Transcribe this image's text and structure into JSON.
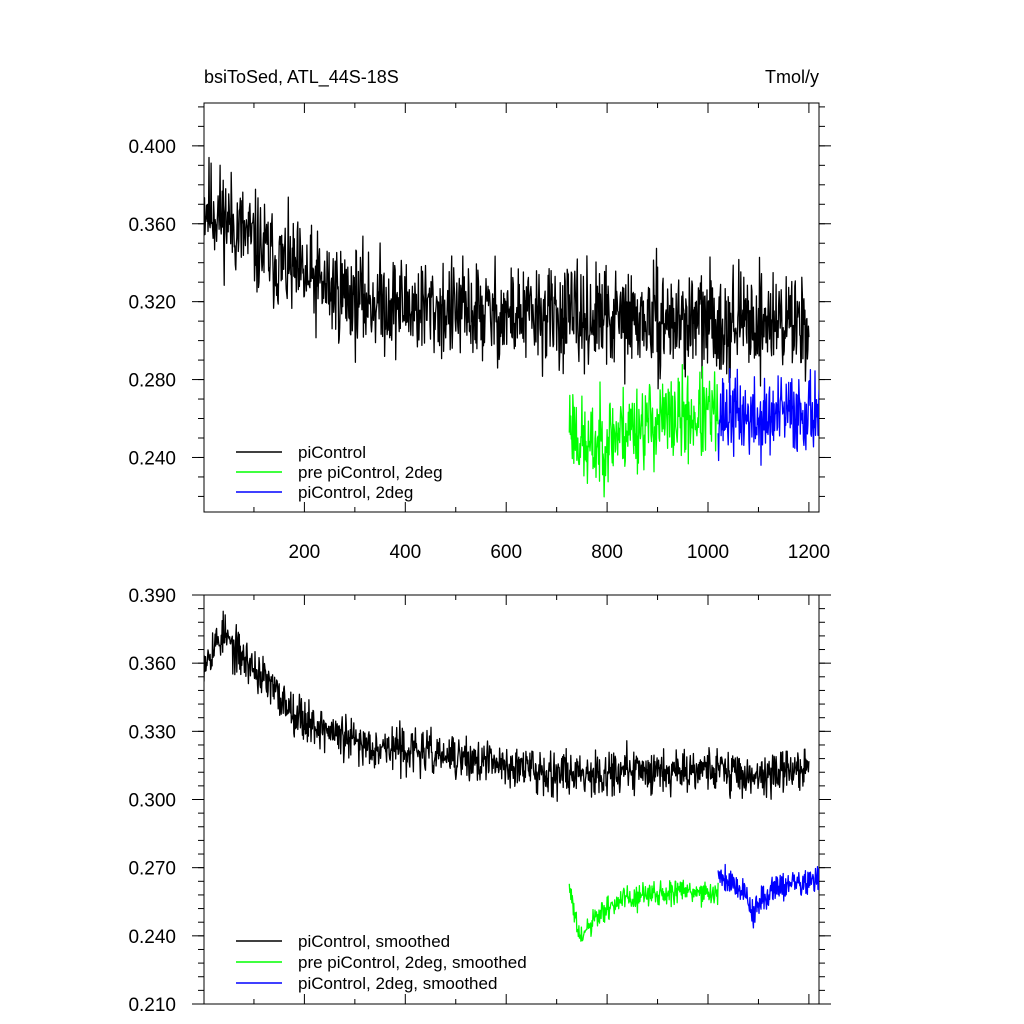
{
  "chart_data": [
    {
      "type": "line",
      "title": "bsiToSed, ATL_44S-18S",
      "units": "Tmol/y",
      "xlim": [
        1,
        1220
      ],
      "ylim": [
        0.212,
        0.422
      ],
      "x_ticks": [
        200,
        400,
        600,
        800,
        1000,
        1200
      ],
      "x_tick_labels": [
        "200",
        "400",
        "600",
        "800",
        "1000",
        "1200"
      ],
      "y_ticks": [
        0.24,
        0.28,
        0.32,
        0.36,
        0.4
      ],
      "y_tick_labels": [
        "0.240",
        "0.280",
        "0.320",
        "0.360",
        "0.400"
      ],
      "legend_position": "bottom-left",
      "series": [
        {
          "name": "piControl",
          "color": "#000000",
          "x_range": [
            1,
            1200
          ],
          "anchors": [
            [
              1,
              0.37
            ],
            [
              50,
              0.362
            ],
            [
              100,
              0.35
            ],
            [
              150,
              0.34
            ],
            [
              200,
              0.332
            ],
            [
              300,
              0.322
            ],
            [
              400,
              0.318
            ],
            [
              500,
              0.315
            ],
            [
              600,
              0.313
            ],
            [
              700,
              0.312
            ],
            [
              800,
              0.311
            ],
            [
              900,
              0.31
            ],
            [
              1000,
              0.31
            ],
            [
              1100,
              0.31
            ],
            [
              1200,
              0.31
            ]
          ],
          "noise": 0.016,
          "seed": 11
        },
        {
          "name": "pre piControl, 2deg",
          "color": "#00ff00",
          "x_range": [
            725,
            1020
          ],
          "anchors": [
            [
              725,
              0.26
            ],
            [
              760,
              0.243
            ],
            [
              800,
              0.25
            ],
            [
              850,
              0.256
            ],
            [
              900,
              0.258
            ],
            [
              950,
              0.26
            ],
            [
              1020,
              0.262
            ]
          ],
          "noise": 0.014,
          "seed": 23
        },
        {
          "name": "piControl, 2deg",
          "color": "#0000ff",
          "x_range": [
            1020,
            1220
          ],
          "anchors": [
            [
              1020,
              0.262
            ],
            [
              1060,
              0.262
            ],
            [
              1100,
              0.258
            ],
            [
              1150,
              0.262
            ],
            [
              1220,
              0.265
            ]
          ],
          "noise": 0.013,
          "seed": 37
        }
      ]
    },
    {
      "type": "line",
      "xlim": [
        1,
        1220
      ],
      "ylim": [
        0.21,
        0.39
      ],
      "x_ticks": [
        200,
        400,
        600,
        800,
        1000,
        1200
      ],
      "y_ticks": [
        0.21,
        0.24,
        0.27,
        0.3,
        0.33,
        0.36,
        0.39
      ],
      "y_tick_labels": [
        "0.210",
        "0.240",
        "0.270",
        "0.300",
        "0.330",
        "0.360",
        "0.390"
      ],
      "legend_position": "bottom-left",
      "series": [
        {
          "name": "piControl, smoothed",
          "color": "#000000",
          "x_range": [
            1,
            1200
          ],
          "anchors": [
            [
              1,
              0.362
            ],
            [
              40,
              0.373
            ],
            [
              60,
              0.366
            ],
            [
              100,
              0.358
            ],
            [
              150,
              0.345
            ],
            [
              200,
              0.335
            ],
            [
              250,
              0.33
            ],
            [
              300,
              0.325
            ],
            [
              400,
              0.322
            ],
            [
              500,
              0.318
            ],
            [
              600,
              0.315
            ],
            [
              700,
              0.312
            ],
            [
              800,
              0.312
            ],
            [
              900,
              0.313
            ],
            [
              1000,
              0.314
            ],
            [
              1100,
              0.31
            ],
            [
              1200,
              0.315
            ]
          ],
          "noise": 0.006,
          "seed": 53
        },
        {
          "name": "pre piControl, 2deg, smoothed",
          "color": "#00ff00",
          "x_range": [
            725,
            1020
          ],
          "anchors": [
            [
              725,
              0.262
            ],
            [
              745,
              0.238
            ],
            [
              780,
              0.248
            ],
            [
              820,
              0.255
            ],
            [
              880,
              0.258
            ],
            [
              950,
              0.26
            ],
            [
              1020,
              0.258
            ]
          ],
          "noise": 0.0035,
          "seed": 61
        },
        {
          "name": "piControl, 2deg, smoothed",
          "color": "#0000ff",
          "x_range": [
            1020,
            1220
          ],
          "anchors": [
            [
              1020,
              0.268
            ],
            [
              1070,
              0.26
            ],
            [
              1090,
              0.25
            ],
            [
              1130,
              0.262
            ],
            [
              1220,
              0.264
            ]
          ],
          "noise": 0.004,
          "seed": 79
        }
      ]
    }
  ]
}
